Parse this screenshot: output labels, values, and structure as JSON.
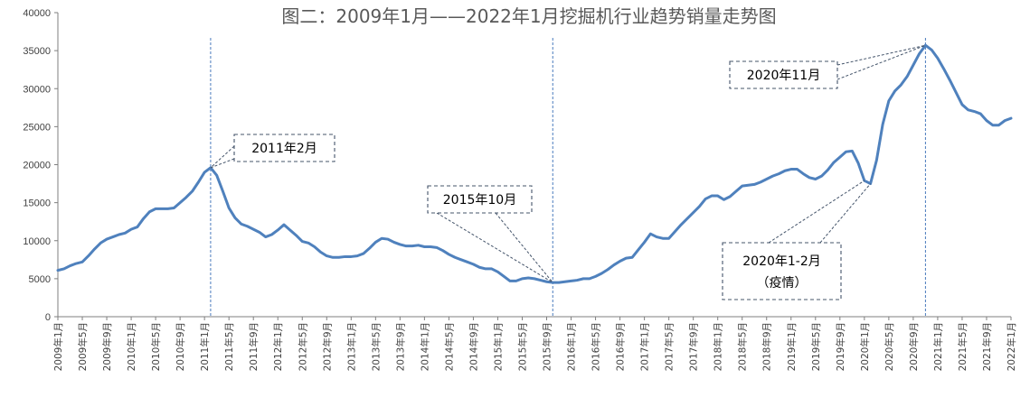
{
  "chart_data": {
    "type": "line",
    "title": "图二：2009年1月——2022年1月挖掘机行业趋势销量走势图",
    "ylim": [
      0,
      40000
    ],
    "yticks": [
      0,
      5000,
      10000,
      15000,
      20000,
      25000,
      30000,
      35000,
      40000
    ],
    "xticks": [
      "2009年1月",
      "2009年5月",
      "2009年9月",
      "2010年1月",
      "2010年5月",
      "2010年9月",
      "2011年1月",
      "2011年5月",
      "2011年9月",
      "2012年1月",
      "2012年5月",
      "2012年9月",
      "2013年1月",
      "2013年5月",
      "2013年9月",
      "2014年1月",
      "2014年5月",
      "2014年9月",
      "2015年1月",
      "2015年5月",
      "2015年9月",
      "2016年1月",
      "2016年5月",
      "2016年9月",
      "2017年1月",
      "2017年5月",
      "2017年9月",
      "2018年1月",
      "2018年5月",
      "2018年9月",
      "2019年1月",
      "2019年5月",
      "2019年9月",
      "2020年1月",
      "2020年5月",
      "2020年9月",
      "2021年1月",
      "2021年5月",
      "2021年9月",
      "2022年1月"
    ],
    "grid": false,
    "series": [
      {
        "color": "#4f81bd",
        "values": [
          6100,
          6300,
          6700,
          7000,
          7200,
          8000,
          8900,
          9700,
          10200,
          10500,
          10800,
          11000,
          11500,
          11800,
          12900,
          13800,
          14200,
          14200,
          14200,
          14300,
          15000,
          15700,
          16500,
          17700,
          19000,
          19600,
          18600,
          16500,
          14300,
          13000,
          12200,
          11900,
          11500,
          11100,
          10500,
          10800,
          11400,
          12100,
          11400,
          10700,
          9900,
          9700,
          9200,
          8500,
          8000,
          7800,
          7800,
          7900,
          7900,
          8000,
          8300,
          9000,
          9800,
          10300,
          10200,
          9800,
          9500,
          9300,
          9300,
          9400,
          9200,
          9200,
          9100,
          8700,
          8200,
          7800,
          7500,
          7200,
          6900,
          6500,
          6300,
          6300,
          5900,
          5300,
          4700,
          4700,
          5000,
          5100,
          5000,
          4800,
          4600,
          4500,
          4500,
          4600,
          4700,
          4800,
          5000,
          5000,
          5300,
          5700,
          6200,
          6800,
          7300,
          7700,
          7800,
          8800,
          9800,
          10900,
          10500,
          10300,
          10300,
          11200,
          12100,
          12900,
          13700,
          14500,
          15500,
          15900,
          15900,
          15400,
          15800,
          16500,
          17200,
          17300,
          17400,
          17700,
          18100,
          18500,
          18800,
          19200,
          19400,
          19400,
          18800,
          18300,
          18100,
          18500,
          19300,
          20300,
          21000,
          21700,
          21800,
          20200,
          17900,
          17500,
          20600,
          25300,
          28400,
          29700,
          30500,
          31600,
          33100,
          34600,
          35700,
          35100,
          34000,
          32600,
          31100,
          29500,
          27900,
          27200,
          27000,
          26700,
          25800,
          25200,
          25200,
          25800,
          26100
        ]
      }
    ],
    "vertical_markers": [
      "2011年2月",
      "2015年10月",
      "2020年11月"
    ],
    "annotations": [
      {
        "label": "2011年2月",
        "target": "2011年2月"
      },
      {
        "label": "2015年10月",
        "target": "2015年10月"
      },
      {
        "label": "2020年11月",
        "target": "2020年11月"
      },
      {
        "label": "2020年1-2月",
        "sublabel": "（疫情）",
        "target": [
          "2020年1月",
          "2020年2月"
        ]
      }
    ]
  }
}
